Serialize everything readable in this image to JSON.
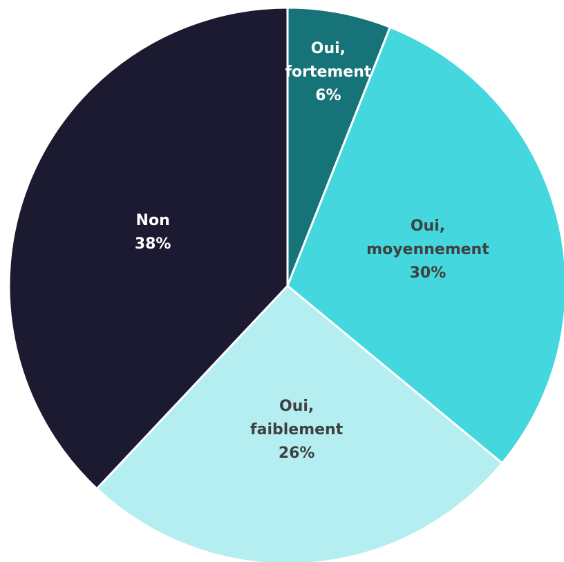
{
  "chart_data": {
    "type": "pie",
    "categories": [
      "Oui, fortement",
      "Oui, moyennement",
      "Oui, faiblement",
      "Non"
    ],
    "values": [
      6,
      30,
      26,
      38
    ],
    "value_labels": [
      "6%",
      "30%",
      "26%",
      "38%"
    ],
    "colors": [
      "#167377",
      "#44d7de",
      "#b4eef0",
      "#1c1a31"
    ]
  }
}
